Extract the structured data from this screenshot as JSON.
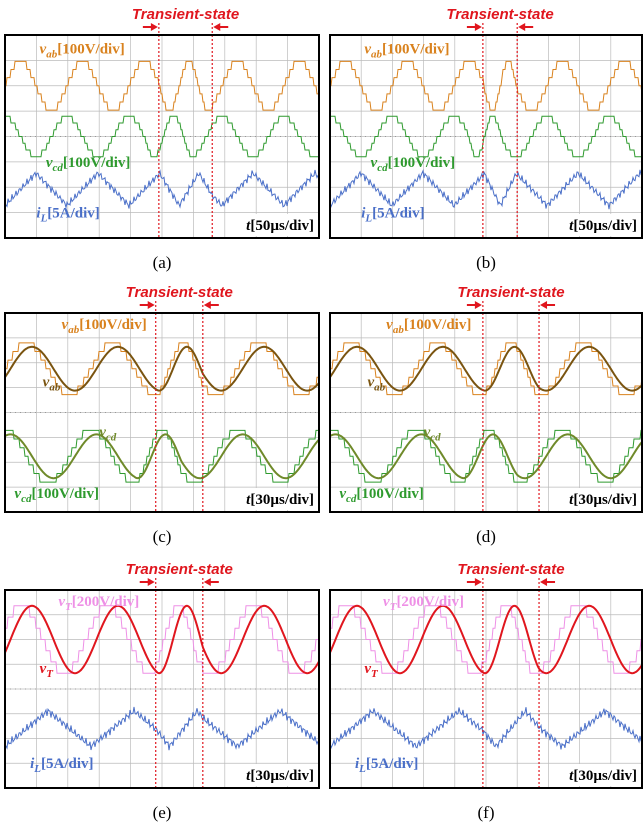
{
  "panels": [
    {
      "caption": "(a)",
      "transient": "Transient-state",
      "time_scale": {
        "symbol": "t",
        "scale": "[50µs/div]"
      },
      "labels": [
        {
          "symbol": "v",
          "sub": "ab",
          "scale": "[100V/div]"
        },
        {
          "symbol": "v",
          "sub": "cd",
          "scale": "[100V/div]"
        },
        {
          "symbol": "i",
          "sub": "L",
          "scale": "[5A/div]"
        }
      ]
    },
    {
      "caption": "(b)",
      "transient": "Transient-state",
      "time_scale": {
        "symbol": "t",
        "scale": "[50µs/div]"
      },
      "labels": [
        {
          "symbol": "v",
          "sub": "ab",
          "scale": "[100V/div]"
        },
        {
          "symbol": "v",
          "sub": "cd",
          "scale": "[100V/div]"
        },
        {
          "symbol": "i",
          "sub": "L",
          "scale": "[5A/div]"
        }
      ]
    },
    {
      "caption": "(c)",
      "transient": "Transient-state",
      "time_scale": {
        "symbol": "t",
        "scale": "[30µs/div]"
      },
      "labels": [
        {
          "symbol": "v",
          "sub": "ab",
          "scale": "[100V/div]"
        },
        {
          "symbol": "v",
          "sub": "ab"
        },
        {
          "symbol": "v",
          "sub": "cd"
        },
        {
          "symbol": "v",
          "sub": "cd",
          "scale": "[100V/div]"
        }
      ]
    },
    {
      "caption": "(d)",
      "transient": "Transient-state",
      "time_scale": {
        "symbol": "t",
        "scale": "[30µs/div]"
      },
      "labels": [
        {
          "symbol": "v",
          "sub": "ab",
          "scale": "[100V/div]"
        },
        {
          "symbol": "v",
          "sub": "ab"
        },
        {
          "symbol": "v",
          "sub": "cd"
        },
        {
          "symbol": "v",
          "sub": "cd",
          "scale": "[100V/div]"
        }
      ]
    },
    {
      "caption": "(e)",
      "transient": "Transient-state",
      "time_scale": {
        "symbol": "t",
        "scale": "[30µs/div]"
      },
      "labels": [
        {
          "symbol": "v",
          "sub": "T",
          "scale": "[200V/div]"
        },
        {
          "symbol": "v",
          "sub": "T"
        },
        {
          "symbol": "i",
          "sub": "L",
          "scale": "[5A/div]"
        }
      ]
    },
    {
      "caption": "(f)",
      "transient": "Transient-state",
      "time_scale": {
        "symbol": "t",
        "scale": "[30µs/div]"
      },
      "labels": [
        {
          "symbol": "v",
          "sub": "T",
          "scale": "[200V/div]"
        },
        {
          "symbol": "v",
          "sub": "T"
        },
        {
          "symbol": "i",
          "sub": "L",
          "scale": "[5A/div]"
        }
      ]
    }
  ]
}
